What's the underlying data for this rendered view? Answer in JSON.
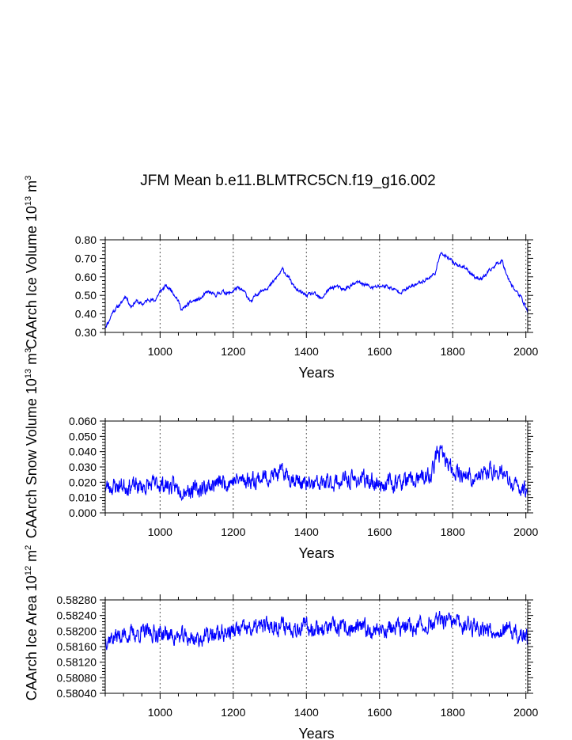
{
  "title": "JFM Mean b.e11.BLMTRC5CN.f19_g16.002",
  "colors": {
    "series": "#0000ff",
    "axis": "#000000",
    "grid": "#555555"
  },
  "chart_data": [
    {
      "type": "line",
      "title": "JFM Mean b.e11.BLMTRC5CN.f19_g16.002",
      "xlabel": "Years",
      "ylabel": "CAArch Ice Volume",
      "yunit_base": "10",
      "yunit_exp": "13",
      "yunit_m": "m",
      "yunit_mexp": "3",
      "xlim": [
        850,
        2005
      ],
      "ylim": [
        0.3,
        0.8
      ],
      "xticks": [
        "1000",
        "1200",
        "1400",
        "1600",
        "1800",
        "2000"
      ],
      "yticks": [
        "0.30",
        "0.40",
        "0.50",
        "0.60",
        "0.70",
        "0.80"
      ],
      "grid_x": true,
      "key_x": [
        850,
        860,
        870,
        880,
        895,
        905,
        920,
        935,
        950,
        970,
        985,
        1000,
        1015,
        1030,
        1045,
        1060,
        1075,
        1090,
        1110,
        1130,
        1150,
        1170,
        1190,
        1210,
        1230,
        1250,
        1260,
        1280,
        1300,
        1320,
        1335,
        1350,
        1365,
        1380,
        1400,
        1420,
        1440,
        1460,
        1480,
        1500,
        1520,
        1540,
        1560,
        1580,
        1600,
        1620,
        1640,
        1660,
        1680,
        1700,
        1720,
        1740,
        1755,
        1765,
        1780,
        1800,
        1820,
        1840,
        1860,
        1880,
        1900,
        1920,
        1935,
        1950,
        1970,
        1990,
        2005
      ],
      "key_y": [
        0.33,
        0.36,
        0.41,
        0.43,
        0.46,
        0.5,
        0.44,
        0.47,
        0.45,
        0.48,
        0.47,
        0.52,
        0.55,
        0.53,
        0.49,
        0.42,
        0.45,
        0.47,
        0.48,
        0.52,
        0.5,
        0.52,
        0.51,
        0.54,
        0.52,
        0.46,
        0.5,
        0.53,
        0.55,
        0.6,
        0.64,
        0.6,
        0.55,
        0.52,
        0.5,
        0.51,
        0.48,
        0.53,
        0.55,
        0.53,
        0.55,
        0.57,
        0.56,
        0.54,
        0.55,
        0.55,
        0.53,
        0.52,
        0.54,
        0.56,
        0.58,
        0.6,
        0.63,
        0.73,
        0.71,
        0.68,
        0.66,
        0.64,
        0.6,
        0.59,
        0.63,
        0.67,
        0.69,
        0.6,
        0.53,
        0.48,
        0.41
      ],
      "noise": 0.008,
      "seed": 11
    },
    {
      "type": "line",
      "xlabel": "Years",
      "ylabel": "CAArch Snow Volume",
      "yunit_base": "10",
      "yunit_exp": "13",
      "yunit_m": "m",
      "yunit_mexp": "3",
      "xlim": [
        850,
        2005
      ],
      "ylim": [
        0.0,
        0.06
      ],
      "xticks": [
        "1000",
        "1200",
        "1400",
        "1600",
        "1800",
        "2000"
      ],
      "yticks": [
        "0.000",
        "0.010",
        "0.020",
        "0.030",
        "0.040",
        "0.050",
        "0.060"
      ],
      "grid_x": true,
      "key_x": [
        850,
        900,
        950,
        1000,
        1050,
        1100,
        1150,
        1200,
        1260,
        1300,
        1340,
        1400,
        1450,
        1500,
        1550,
        1600,
        1650,
        1700,
        1740,
        1760,
        1770,
        1790,
        1820,
        1860,
        1900,
        1930,
        1960,
        2005
      ],
      "key_y": [
        0.017,
        0.018,
        0.017,
        0.019,
        0.016,
        0.015,
        0.019,
        0.021,
        0.022,
        0.024,
        0.026,
        0.018,
        0.019,
        0.021,
        0.022,
        0.019,
        0.02,
        0.021,
        0.024,
        0.04,
        0.038,
        0.03,
        0.026,
        0.022,
        0.027,
        0.028,
        0.018,
        0.015
      ],
      "noise": 0.0045,
      "seed": 23
    },
    {
      "type": "line",
      "xlabel": "Years",
      "ylabel": "CAArch Ice Area",
      "yunit_base": "10",
      "yunit_exp": "12",
      "yunit_m": "m",
      "yunit_mexp": "2",
      "xlim": [
        850,
        2005
      ],
      "ylim": [
        0.5804,
        0.5828
      ],
      "xticks": [
        "1000",
        "1200",
        "1400",
        "1600",
        "1800",
        "2000"
      ],
      "yticks": [
        "0.58040",
        "0.58080",
        "0.58120",
        "0.58160",
        "0.58200",
        "0.58240",
        "0.58280"
      ],
      "grid_x": true,
      "key_x": [
        850,
        900,
        950,
        1000,
        1050,
        1100,
        1150,
        1200,
        1250,
        1300,
        1400,
        1500,
        1600,
        1700,
        1770,
        1800,
        1850,
        1900,
        1950,
        2005
      ],
      "key_y": [
        0.5818,
        0.5819,
        0.58195,
        0.58195,
        0.58185,
        0.5818,
        0.5819,
        0.582,
        0.58205,
        0.58215,
        0.5821,
        0.58205,
        0.58205,
        0.5821,
        0.58225,
        0.5822,
        0.58215,
        0.58205,
        0.582,
        0.5818
      ],
      "noise": 0.00018,
      "seed": 37
    }
  ]
}
